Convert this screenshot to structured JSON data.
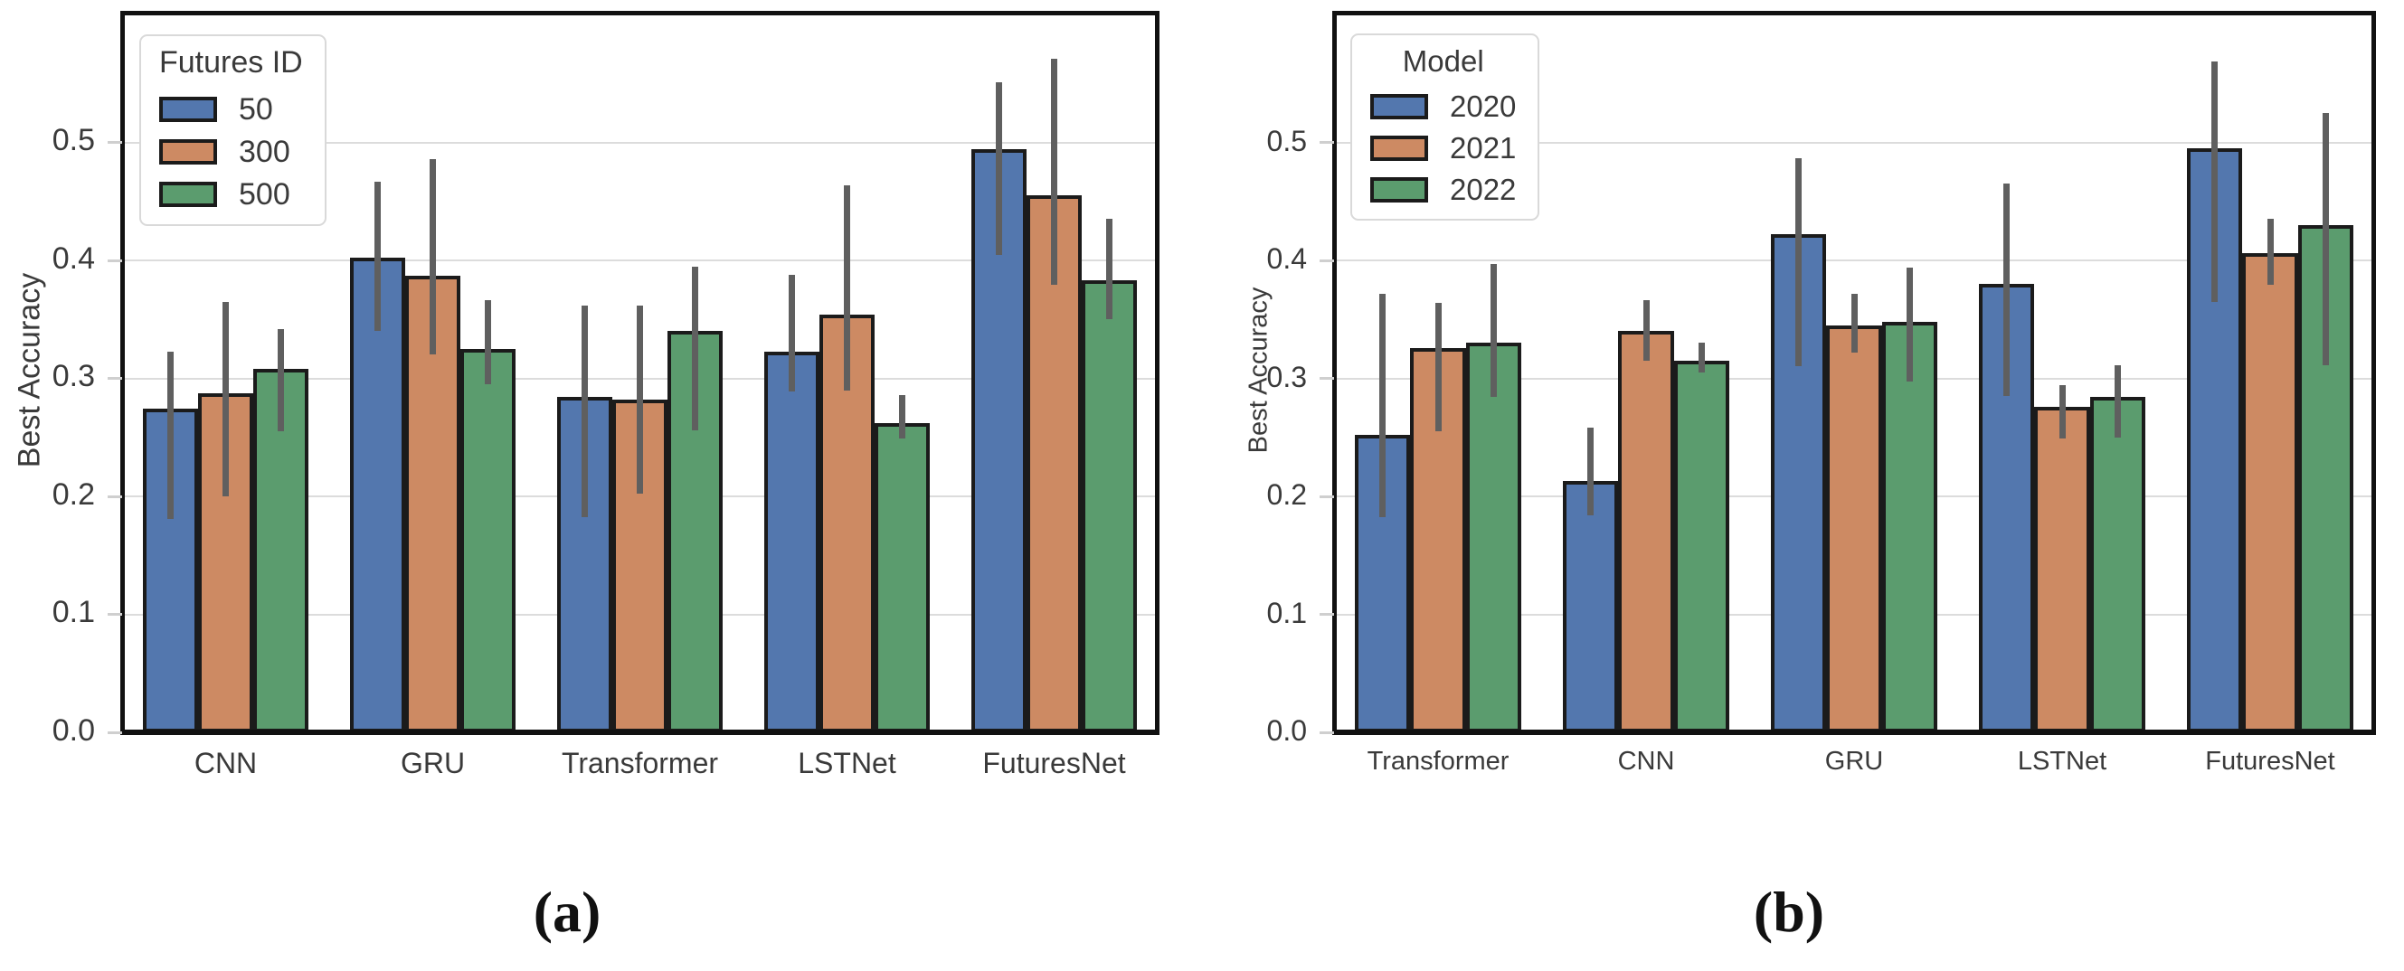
{
  "captions": [
    "(a)",
    "(b)"
  ],
  "axis": {
    "ylabel": "Best Accuracy",
    "ytick_labels": [
      "0.0",
      "0.1",
      "0.2",
      "0.3",
      "0.4",
      "0.5"
    ]
  },
  "colors": {
    "bar_blue": "#5377ae",
    "bar_orange": "#cd8a63",
    "bar_green": "#5b9c6e",
    "bar_edge": "#1b1b1b",
    "error_bar": "#5f5f5f",
    "gridline": "#dcdcdc",
    "spine": "#111111",
    "text": "#3a3a3a"
  },
  "chart_data": [
    {
      "type": "bar",
      "panel_caption": "(a)",
      "title": "",
      "xlabel": "",
      "ylabel": "Best Accuracy",
      "ylim": [
        0,
        0.61
      ],
      "yticks": [
        0,
        0.1,
        0.2,
        0.3,
        0.4,
        0.5
      ],
      "grid": true,
      "error_bars": true,
      "legend": {
        "title": "Futures ID",
        "position": "upper left"
      },
      "categories": [
        "CNN",
        "GRU",
        "Transformer",
        "LSTNet",
        "FuturesNet"
      ],
      "series": [
        {
          "name": "50",
          "color": "#5377ae",
          "values": [
            0.274,
            0.402,
            0.284,
            0.323,
            0.494
          ],
          "err_low": [
            0.181,
            0.34,
            0.182,
            0.289,
            0.405
          ],
          "err_high": [
            0.323,
            0.467,
            0.362,
            0.388,
            0.551
          ]
        },
        {
          "name": "300",
          "color": "#cd8a63",
          "values": [
            0.287,
            0.387,
            0.282,
            0.354,
            0.455
          ],
          "err_low": [
            0.2,
            0.32,
            0.202,
            0.29,
            0.379
          ],
          "err_high": [
            0.365,
            0.486,
            0.362,
            0.464,
            0.571
          ]
        },
        {
          "name": "500",
          "color": "#5b9c6e",
          "values": [
            0.308,
            0.325,
            0.34,
            0.262,
            0.383
          ],
          "err_low": [
            0.255,
            0.295,
            0.256,
            0.249,
            0.35
          ],
          "err_high": [
            0.342,
            0.366,
            0.395,
            0.286,
            0.435
          ]
        }
      ]
    },
    {
      "type": "bar",
      "panel_caption": "(b)",
      "title": "",
      "xlabel": "",
      "ylabel": "Best Accuracy",
      "ylim": [
        0,
        0.61
      ],
      "yticks": [
        0,
        0.1,
        0.2,
        0.3,
        0.4,
        0.5
      ],
      "grid": true,
      "error_bars": true,
      "legend": {
        "title": "Model",
        "position": "upper left"
      },
      "categories": [
        "Transformer",
        "CNN",
        "GRU",
        "LSTNet",
        "FuturesNet"
      ],
      "series": [
        {
          "name": "2020",
          "color": "#5377ae",
          "values": [
            0.252,
            0.213,
            0.422,
            0.38,
            0.495
          ],
          "err_low": [
            0.182,
            0.184,
            0.31,
            0.285,
            0.365
          ],
          "err_high": [
            0.372,
            0.258,
            0.487,
            0.465,
            0.569
          ]
        },
        {
          "name": "2021",
          "color": "#cd8a63",
          "values": [
            0.326,
            0.34,
            0.345,
            0.276,
            0.406
          ],
          "err_low": [
            0.255,
            0.315,
            0.322,
            0.249,
            0.379
          ],
          "err_high": [
            0.364,
            0.366,
            0.372,
            0.294,
            0.435
          ]
        },
        {
          "name": "2022",
          "color": "#5b9c6e",
          "values": [
            0.33,
            0.315,
            0.348,
            0.284,
            0.43
          ],
          "err_low": [
            0.284,
            0.305,
            0.297,
            0.25,
            0.311
          ],
          "err_high": [
            0.397,
            0.33,
            0.394,
            0.311,
            0.525
          ]
        }
      ]
    }
  ]
}
